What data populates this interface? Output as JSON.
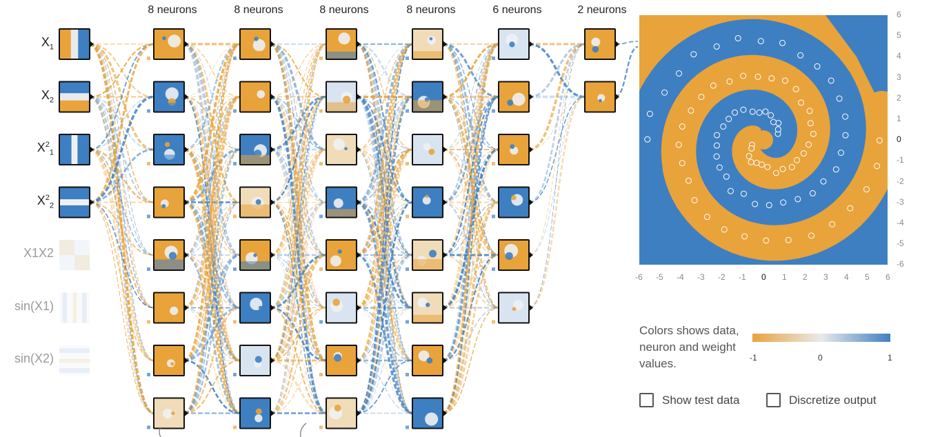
{
  "layers": [
    {
      "label": "8 neurons",
      "count": 8
    },
    {
      "label": "8 neurons",
      "count": 8
    },
    {
      "label": "8 neurons",
      "count": 8
    },
    {
      "label": "8 neurons",
      "count": 8
    },
    {
      "label": "6 neurons",
      "count": 6
    },
    {
      "label": "2 neurons",
      "count": 2
    }
  ],
  "features": [
    {
      "name": "X1",
      "base": "X",
      "sub": "1",
      "sup": "",
      "active": true
    },
    {
      "name": "X2",
      "base": "X",
      "sub": "2",
      "sup": "",
      "active": true
    },
    {
      "name": "X1^2",
      "base": "X",
      "sub": "1",
      "sup": "2",
      "active": true
    },
    {
      "name": "X2^2",
      "base": "X",
      "sub": "2",
      "sup": "2",
      "active": true
    },
    {
      "name": "X1X2",
      "base": "X1X2",
      "sub": "",
      "sup": "",
      "active": false
    },
    {
      "name": "sin(X1)",
      "base": "sin(X1)",
      "sub": "",
      "sup": "",
      "active": false
    },
    {
      "name": "sin(X2)",
      "base": "sin(X2)",
      "sub": "",
      "sup": "",
      "active": false
    }
  ],
  "output_plot": {
    "x_ticks": [
      "-6",
      "-5",
      "-4",
      "-3",
      "-2",
      "-1",
      "0",
      "1",
      "2",
      "3",
      "4",
      "5",
      "6"
    ],
    "y_ticks": [
      "6",
      "5",
      "4",
      "3",
      "2",
      "1",
      "0",
      "-1",
      "-2",
      "-3",
      "-4",
      "-5",
      "-6"
    ],
    "range": [
      -6,
      6
    ]
  },
  "legend": {
    "text": "Colors shows data, neuron and weight values.",
    "min_label": "-1",
    "mid_label": "0",
    "max_label": "1"
  },
  "options": {
    "show_test_data": "Show test data",
    "discretize_output": "Discretize output"
  },
  "colors": {
    "orange": "#e8a33b",
    "blue": "#3e7fc1",
    "neutral": "#e8eaeb"
  }
}
